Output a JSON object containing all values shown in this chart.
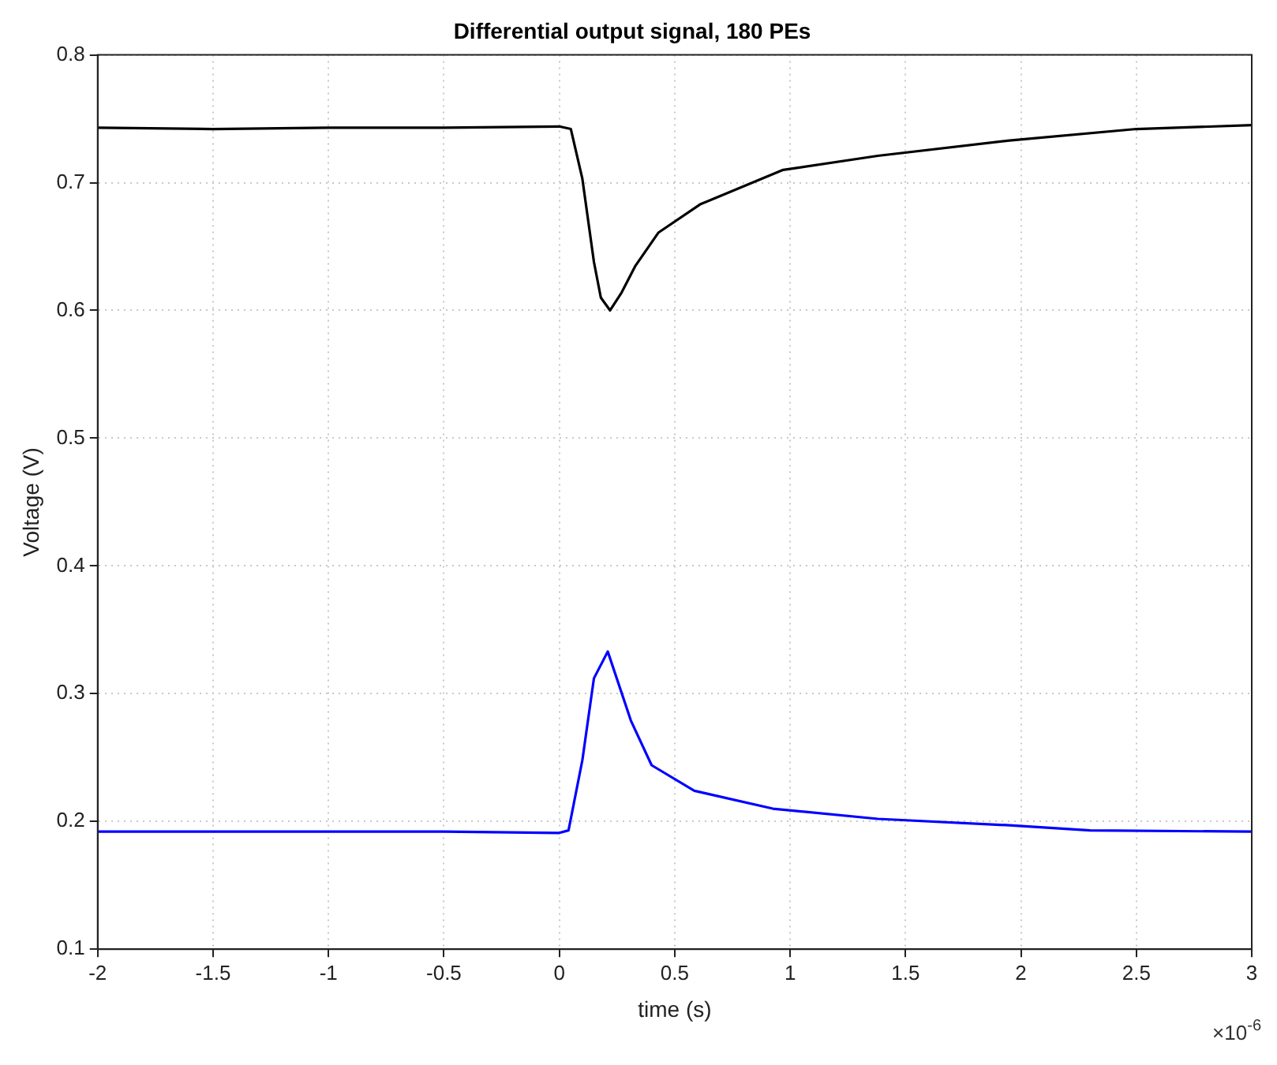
{
  "chart_data": {
    "type": "line",
    "title": "Differential output signal, 180 PEs",
    "xlabel": "time (s)",
    "ylabel": "Voltage (V)",
    "annotations": [
      "×10$^{-6}$"
    ],
    "xlim": [
      -2,
      3
    ],
    "xticks": [
      -2,
      -1.5,
      -1,
      -0.5,
      0,
      0.5,
      1,
      1.5,
      2,
      2.5,
      3
    ],
    "ylim": [
      0.1,
      0.8
    ],
    "yticks": [
      0.1,
      0.2,
      0.3,
      0.4,
      0.5,
      0.6,
      0.7,
      0.8
    ],
    "grid": true,
    "legend": false,
    "marker": "none",
    "line_style": "solid",
    "series": [
      {
        "color": "#000000",
        "x": [
          -2,
          -1.5,
          -1,
          -0.5,
          0,
          0.05,
          0.1,
          0.15,
          0.18,
          0.22,
          0.27,
          0.33,
          0.43,
          0.61,
          0.97,
          1.38,
          1.95,
          2.5,
          3
        ],
        "values": [
          0.743,
          0.742,
          0.743,
          0.743,
          0.744,
          0.742,
          0.703,
          0.638,
          0.61,
          0.6,
          0.614,
          0.635,
          0.661,
          0.683,
          0.71,
          0.721,
          0.733,
          0.742,
          0.745
        ]
      },
      {
        "color": "#0000ff",
        "x": [
          -2,
          -1.5,
          -1,
          -0.5,
          0,
          0.04,
          0.1,
          0.15,
          0.21,
          0.31,
          0.4,
          0.585,
          0.925,
          1.38,
          1.95,
          2.3,
          3
        ],
        "values": [
          0.192,
          0.192,
          0.192,
          0.192,
          0.191,
          0.193,
          0.248,
          0.312,
          0.333,
          0.279,
          0.244,
          0.224,
          0.21,
          0.202,
          0.197,
          0.193,
          0.192
        ]
      }
    ]
  }
}
